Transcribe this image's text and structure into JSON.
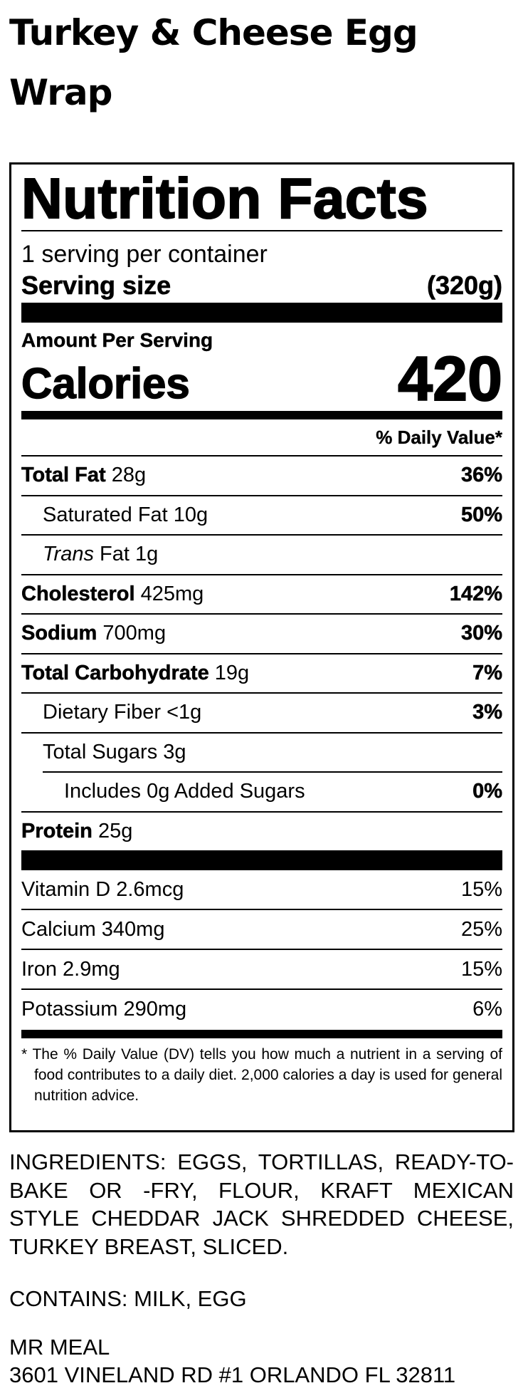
{
  "product_title": "Turkey & Cheese Egg Wrap",
  "label": {
    "heading": "Nutrition Facts",
    "servings_per_container": "1 serving per container",
    "serving_size_label": "Serving size",
    "serving_size_value": "(320g)",
    "amount_per_serving": "Amount Per Serving",
    "calories_label": "Calories",
    "calories_value": "420",
    "daily_value_header": "% Daily Value*",
    "nutrients": [
      {
        "name": "Total Fat",
        "amount": "28g",
        "dv": "36%"
      },
      {
        "name": "Saturated Fat",
        "amount": "10g",
        "dv": "50%"
      },
      {
        "name": "Trans",
        "name_rest": "Fat",
        "amount": "1g",
        "dv": ""
      },
      {
        "name": "Cholesterol",
        "amount": "425mg",
        "dv": "142%"
      },
      {
        "name": "Sodium",
        "amount": "700mg",
        "dv": "30%"
      },
      {
        "name": "Total Carbohydrate",
        "amount": "19g",
        "dv": "7%"
      },
      {
        "name": "Dietary Fiber",
        "amount": "<1g",
        "dv": "3%"
      },
      {
        "name": "Total Sugars",
        "amount": "3g",
        "dv": ""
      },
      {
        "name": "Includes 0g Added Sugars",
        "amount": "",
        "dv": "0%"
      },
      {
        "name": "Protein",
        "amount": "25g",
        "dv": ""
      }
    ],
    "vitamins": [
      {
        "name": "Vitamin D 2.6mcg",
        "dv": "15%"
      },
      {
        "name": "Calcium 340mg",
        "dv": "25%"
      },
      {
        "name": "Iron 2.9mg",
        "dv": "15%"
      },
      {
        "name": "Potassium 290mg",
        "dv": "6%"
      }
    ],
    "footnote": "* The % Daily Value (DV) tells you how much a nutrient in a serving of food contributes to a daily diet. 2,000 calories a day is used for general nutrition advice."
  },
  "ingredients": "INGREDIENTS: EGGS, TORTILLAS, READY-TO-BAKE OR -FRY, FLOUR, KRAFT MEXICAN STYLE CHEDDAR JACK SHREDDED CHEESE, TURKEY BREAST, SLICED.",
  "contains": "CONTAINS: MILK, EGG",
  "manufacturer": {
    "name": "MR MEAL",
    "address": "3601 VINELAND RD #1 ORLANDO FL 32811"
  }
}
